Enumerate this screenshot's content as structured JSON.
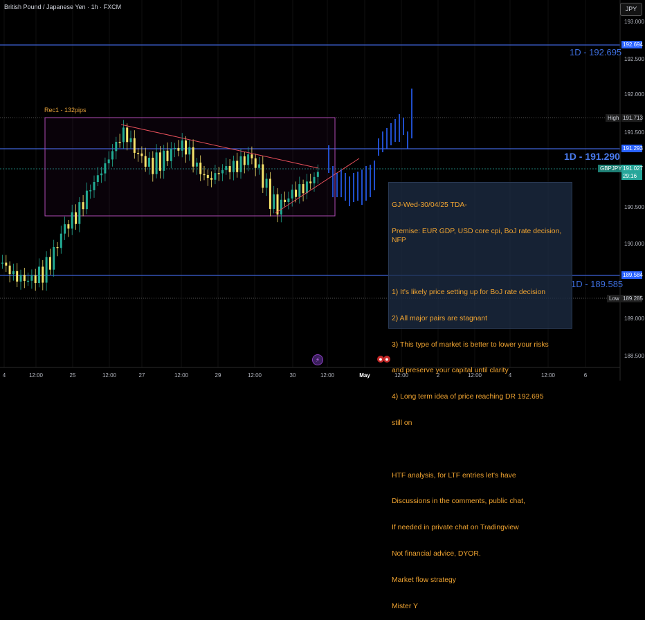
{
  "header": {
    "title": "British Pound / Japanese Yen · 1h · FXCM",
    "currency_button": "JPY"
  },
  "y_axis": {
    "ticks": [
      "193.000",
      "192.500",
      "192.000",
      "191.500",
      "190.500",
      "190.000",
      "189.000",
      "188.500"
    ]
  },
  "x_axis": {
    "labels": [
      {
        "text": "4",
        "bold": false
      },
      {
        "text": "12:00",
        "bold": false
      },
      {
        "text": "25",
        "bold": false
      },
      {
        "text": "12:00",
        "bold": false
      },
      {
        "text": "27",
        "bold": false
      },
      {
        "text": "12:00",
        "bold": false
      },
      {
        "text": "29",
        "bold": false
      },
      {
        "text": "12:00",
        "bold": false
      },
      {
        "text": "30",
        "bold": false
      },
      {
        "text": "12:00",
        "bold": false
      },
      {
        "text": "May",
        "bold": true
      },
      {
        "text": "12:00",
        "bold": false
      },
      {
        "text": "2",
        "bold": false
      },
      {
        "text": "12:00",
        "bold": false
      },
      {
        "text": "4",
        "bold": false
      },
      {
        "text": "12:00",
        "bold": false
      },
      {
        "text": "6",
        "bold": false
      }
    ]
  },
  "price_tags": {
    "level_top": "192.694",
    "high_label": "High",
    "high": "191.713",
    "level_mid": "191.293",
    "symbol": "GBPJPY",
    "current": "191.027",
    "countdown": "29:16",
    "level_low": "189.584",
    "low_label": "Low",
    "low": "189.285"
  },
  "levels": {
    "top_label": "1D - 192.695",
    "mid_label": "1D - 191.290",
    "low_label": "1D - 189.585"
  },
  "rectangle": {
    "label": "Rec1 - 132pips"
  },
  "note": {
    "lines": [
      "GJ-Wed-30/04/25 TDA-",
      "Premise: EUR GDP, USD core cpi, BoJ rate decision, NFP",
      "",
      "1) It's likely price setting up for BoJ rate decision",
      "2) All major pairs are stagnant",
      "3) This type of market is better to lower your risks",
      "and preserve your capital until clarity",
      "4) Long term idea of price reaching DR 192.695",
      "still on",
      "",
      "HTF analysis, for LTF entries let's have",
      "Discussions in the comments, public chat,",
      "If needed in private chat on Tradingview",
      "Not financial advice, DYOR.",
      "Market flow strategy",
      "Mister Y"
    ]
  },
  "events": {
    "lightning_icon": "lightning-icon",
    "flag_icon": "flag-icon"
  },
  "colors": {
    "bull": "#22ab94",
    "bear": "#f7e36b",
    "level": "#3f63d8",
    "tag_blue": "#2962ff",
    "tag_green": "#26a69a",
    "note_text": "#f0a431",
    "trendline": "#e8505b",
    "projection": "#2962ff",
    "rect_border": "#b04bb5"
  }
}
